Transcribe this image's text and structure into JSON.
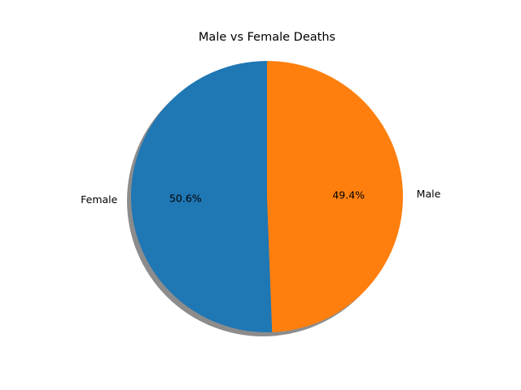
{
  "chart_data": {
    "type": "pie",
    "title": "Male vs Female Deaths",
    "start_angle_deg": 90,
    "direction": "counterclockwise",
    "shadow": true,
    "slices": [
      {
        "label": "Female",
        "value": 50.6,
        "pct_label": "50.6%",
        "color": "#1f77b4"
      },
      {
        "label": "Male",
        "value": 49.4,
        "pct_label": "49.4%",
        "color": "#ff7f0e"
      }
    ]
  }
}
